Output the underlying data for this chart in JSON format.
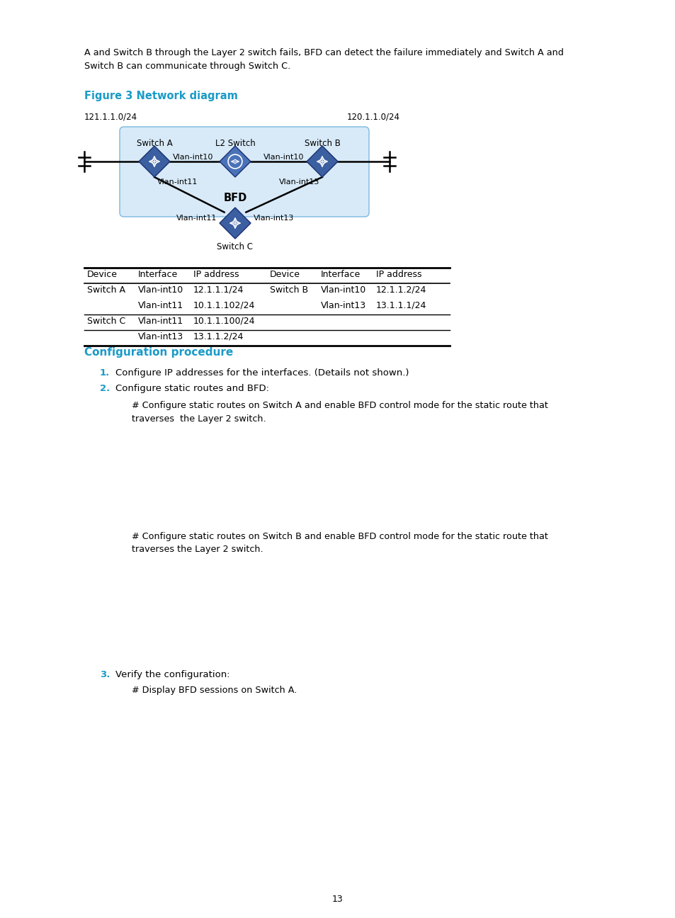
{
  "bg_color": "#ffffff",
  "text_color": "#000000",
  "cyan_color": "#1a9bc7",
  "page_number": "13",
  "intro_text": "A and Switch B through the Layer 2 switch fails, BFD can detect the failure immediately and Switch A and\nSwitch B can communicate through Switch C.",
  "figure_title": "Figure 3 Network diagram",
  "network_labels": {
    "left_subnet": "121.1.1.0/24",
    "right_subnet": "120.1.1.0/24",
    "switch_a": "Switch A",
    "l2_switch": "L2 Switch",
    "switch_b": "Switch B",
    "switch_c": "Switch C",
    "bfd_label": "BFD",
    "vlan_int10_a": "Vlan-int10",
    "vlan_int10_b": "Vlan-int10",
    "vlan_int11_a": "Vlan-int11",
    "vlan_int13_b": "Vlan-int13",
    "vlan_int11_c": "Vlan-int11",
    "vlan_int13_c": "Vlan-int13"
  },
  "table_header": [
    "Device",
    "Interface",
    "IP address",
    "Device",
    "Interface",
    "IP address"
  ],
  "table_rows": [
    [
      "Switch A",
      "Vlan-int10",
      "12.1.1.1/24",
      "Switch B",
      "Vlan-int10",
      "12.1.1.2/24"
    ],
    [
      "",
      "Vlan-int11",
      "10.1.1.102/24",
      "",
      "Vlan-int13",
      "13.1.1.1/24"
    ],
    [
      "Switch C",
      "Vlan-int11",
      "10.1.1.100/24",
      "",
      "",
      ""
    ],
    [
      "",
      "Vlan-int13",
      "13.1.1.2/24",
      "",
      "",
      ""
    ]
  ],
  "section_title": "Configuration procedure",
  "steps": [
    {
      "number": "1.",
      "text": "Configure IP addresses for the interfaces. (Details not shown.)"
    },
    {
      "number": "2.",
      "text": "Configure static routes and BFD:"
    }
  ],
  "step2_sub": "# Configure static routes on Switch A and enable BFD control mode for the static route that\ntraverses  the Layer 2 switch.",
  "step2_sub2": "# Configure static routes on Switch B and enable BFD control mode for the static route that\ntraverses the Layer 2 switch.",
  "step3_number": "3.",
  "step3_text": "Verify the configuration:",
  "step3_sub": "# Display BFD sessions on Switch A."
}
